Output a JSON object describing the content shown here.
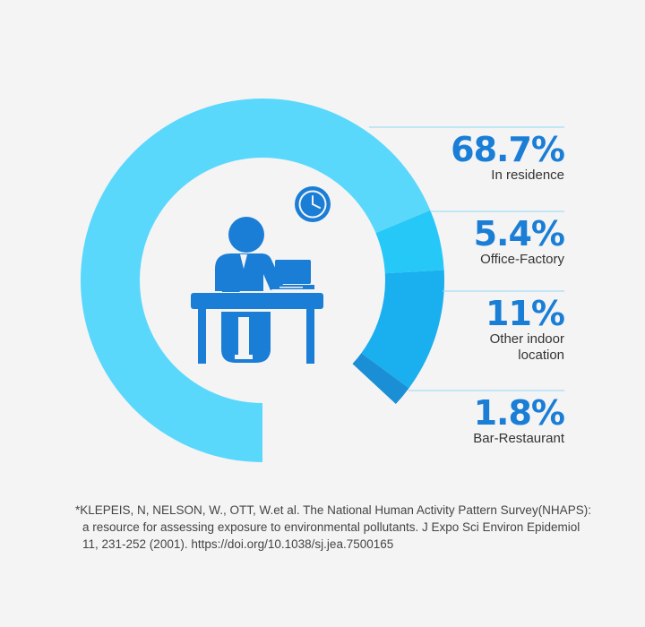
{
  "colors": {
    "background": "#f4f4f4",
    "segments": [
      "#5ad8fc",
      "#26c8f8",
      "#1aafee",
      "#1b8fd6"
    ],
    "remainder": "#f4f4f4",
    "icon": "#1a7ed6",
    "figure_text": "#1a7ed6",
    "leader_line": "#8fd8f6",
    "label_text": "#333333"
  },
  "icon_names": [
    "office-worker-icon",
    "wall-clock-icon",
    "laptop-icon",
    "desk-icon"
  ],
  "chart_data": {
    "type": "donut",
    "unit": "%",
    "categories": [
      "In residence",
      "Office-Factory",
      "Other indoor location",
      "Bar-Restaurant"
    ],
    "values": [
      68.7,
      5.4,
      11,
      1.8
    ],
    "remainder": 13.1,
    "display_values": [
      "68.7%",
      "5.4%",
      "11%",
      "1.8%"
    ],
    "label_lines": [
      [
        "In residence"
      ],
      [
        "Office-Factory"
      ],
      [
        "Other indoor",
        "location"
      ],
      [
        "Bar-Restaurant"
      ]
    ],
    "start": "bottom, clockwise",
    "legend": "right"
  },
  "footnote": {
    "line1": "*KLEPEIS, N, NELSON, W., OTT, W.et al. The National Human Activity Pattern Survey(NHAPS):",
    "line2": "a resource for assessing exposure to environmental pollutants. J Expo Sci Environ Epidemiol",
    "line3": "11, 231-252 (2001).  https://doi.org/10.1038/sj.jea.7500165"
  }
}
